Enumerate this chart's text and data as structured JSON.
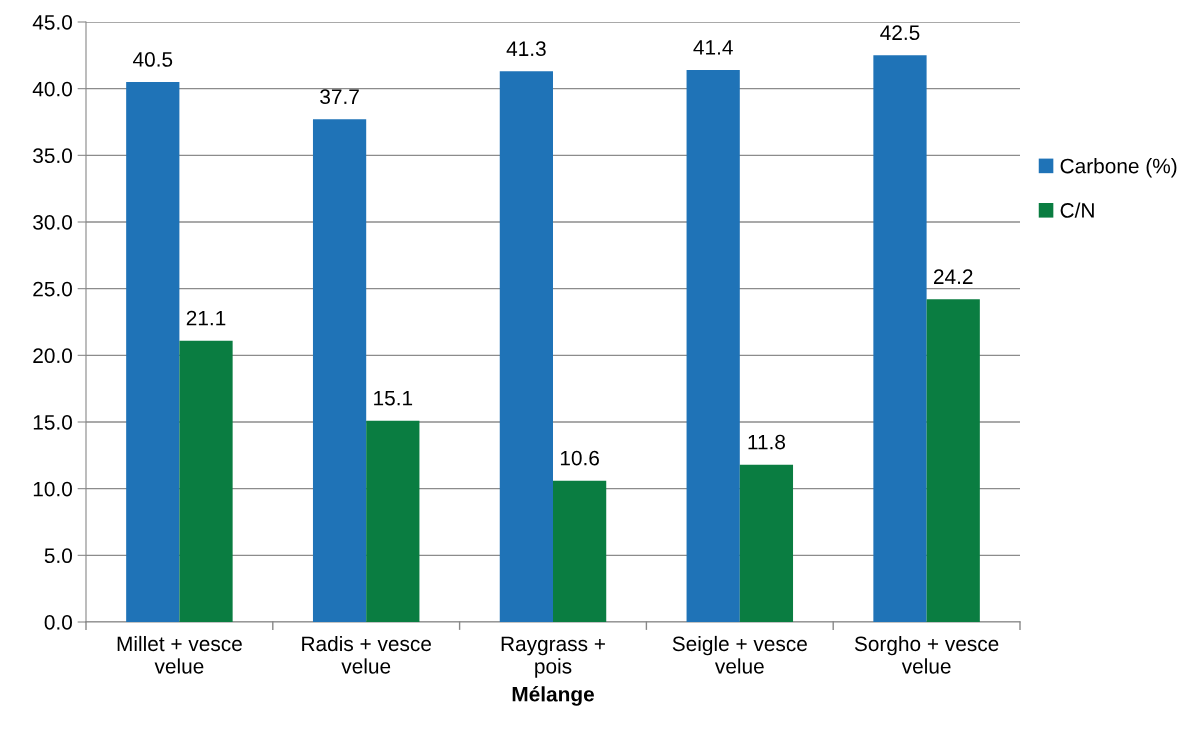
{
  "chart_data": {
    "type": "bar",
    "xlabel": "Mélange",
    "categories": [
      "Millet + vesce\nvelue",
      "Radis + vesce\nvelue",
      "Raygrass +\npois",
      "Seigle + vesce\nvelue",
      "Sorgho + vesce\nvelue"
    ],
    "series": [
      {
        "name": "Carbone (%)",
        "color": "#1f73b7",
        "values": [
          40.5,
          37.7,
          41.3,
          41.4,
          42.5
        ]
      },
      {
        "name": "C/N",
        "color": "#0a7d41",
        "values": [
          21.1,
          15.1,
          10.6,
          11.8,
          24.2
        ]
      }
    ],
    "ylim": [
      0,
      45
    ],
    "yticks": [
      {
        "value": 0,
        "label": "0.0"
      },
      {
        "value": 5,
        "label": "5.0"
      },
      {
        "value": 10,
        "label": "10.0"
      },
      {
        "value": 15,
        "label": "15.0"
      },
      {
        "value": 20,
        "label": "20.0"
      },
      {
        "value": 25,
        "label": "25.0"
      },
      {
        "value": 30,
        "label": "30.0"
      },
      {
        "value": 35,
        "label": "35.0"
      },
      {
        "value": 40,
        "label": "40.0"
      },
      {
        "value": 45,
        "label": "45.0"
      }
    ],
    "grid": "y",
    "legend": "right",
    "data_labels": true
  }
}
